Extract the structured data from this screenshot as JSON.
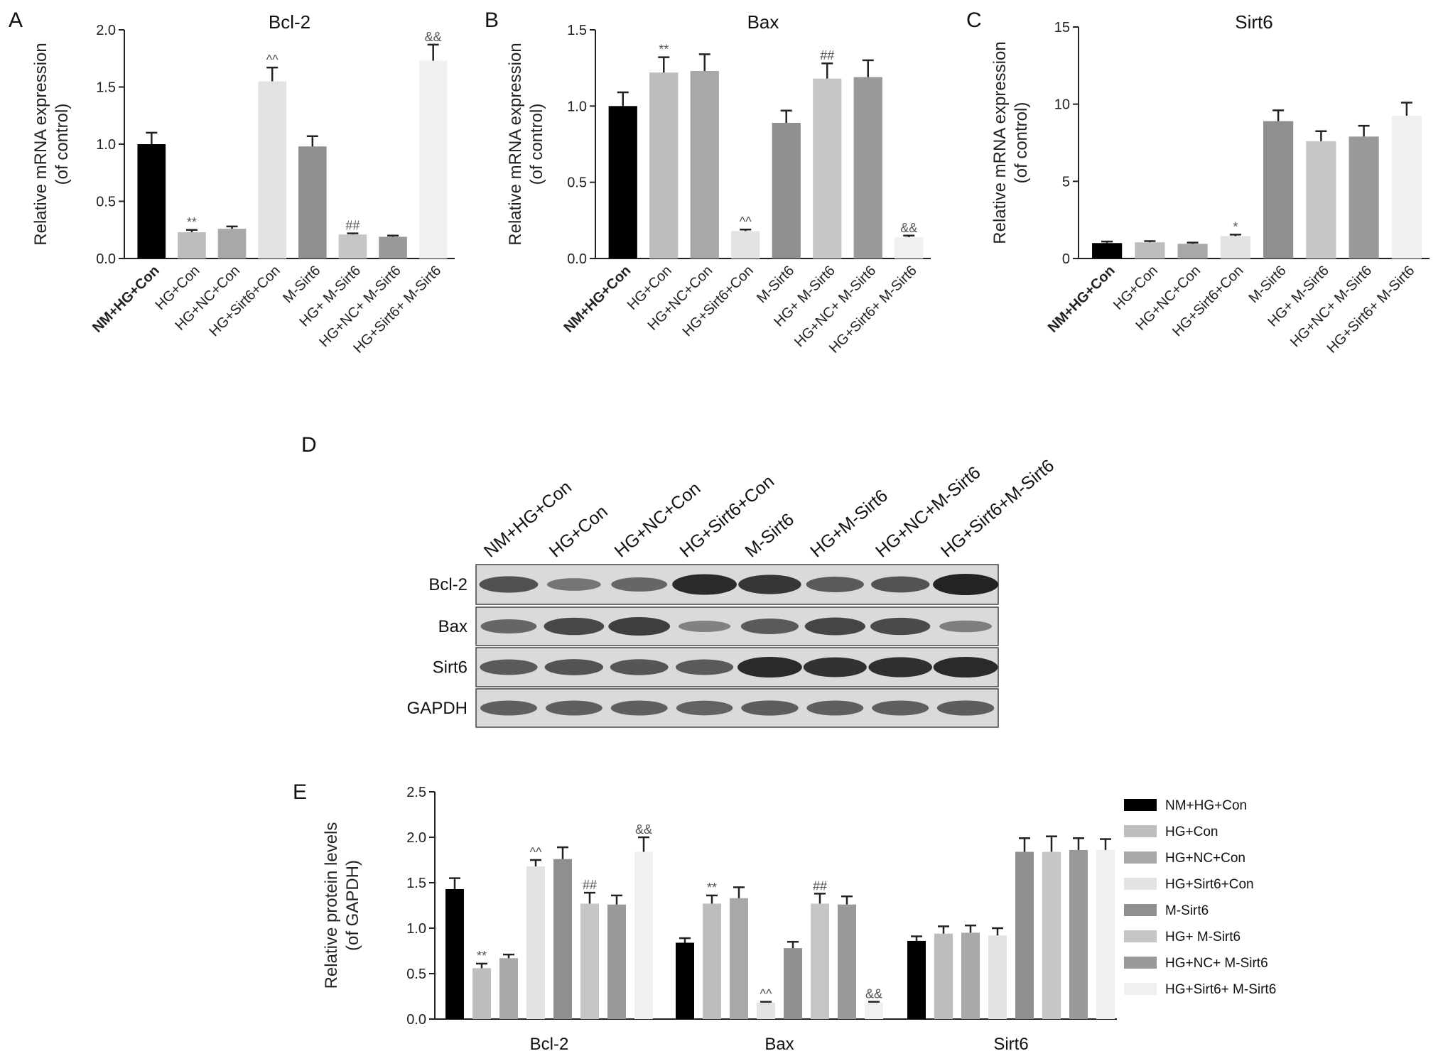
{
  "colors": [
    "#000000",
    "#bdbdbd",
    "#a8a8a8",
    "#e3e3e3",
    "#8f8f8f",
    "#c6c6c6",
    "#999999",
    "#f0f0f0"
  ],
  "chart_data": [
    {
      "panel": "A",
      "type": "bar",
      "title": "Bcl-2",
      "ylabel": "Relative mRNA expression (of control)",
      "ylabel_lines": [
        "Relative mRNA expression",
        "(of control)"
      ],
      "categories": [
        "NM+HG+Con",
        "HG+Con",
        "HG+NC+Con",
        "HG+Sirt6+Con",
        "M-Sirt6",
        "HG+ M-Sirt6",
        "HG+NC+ M-Sirt6",
        "HG+Sirt6+ M-Sirt6"
      ],
      "values": [
        1.0,
        0.23,
        0.26,
        1.55,
        0.98,
        0.21,
        0.19,
        1.73
      ],
      "errors": [
        0.1,
        0.02,
        0.02,
        0.12,
        0.09,
        0.01,
        0.01,
        0.14
      ],
      "annotations": [
        "",
        "**",
        "",
        "^^",
        "",
        "##",
        "",
        "&&"
      ],
      "ylim": [
        0,
        2.0
      ],
      "yticks": [
        "0.0",
        "0.5",
        "1.0",
        "1.5",
        "2.0"
      ]
    },
    {
      "panel": "B",
      "type": "bar",
      "title": "Bax",
      "ylabel": "Relative mRNA expression (of control)",
      "ylabel_lines": [
        "Relative mRNA expression",
        "(of control)"
      ],
      "categories": [
        "NM+HG+Con",
        "HG+Con",
        "HG+NC+Con",
        "HG+Sirt6+Con",
        "M-Sirt6",
        "HG+ M-Sirt6",
        "HG+NC+ M-Sirt6",
        "HG+Sirt6+ M-Sirt6"
      ],
      "values": [
        1.0,
        1.22,
        1.23,
        0.18,
        0.89,
        1.18,
        1.19,
        0.14
      ],
      "errors": [
        0.09,
        0.1,
        0.11,
        0.01,
        0.08,
        0.1,
        0.11,
        0.01
      ],
      "annotations": [
        "",
        "**",
        "",
        "^^",
        "",
        "##",
        "",
        "&&"
      ],
      "ylim": [
        0,
        1.5
      ],
      "yticks": [
        "0.0",
        "0.5",
        "1.0",
        "1.5"
      ]
    },
    {
      "panel": "C",
      "type": "bar",
      "title": "Sirt6",
      "ylabel": "Relative mRNA expression (of control)",
      "ylabel_lines": [
        "Relative mRNA expression",
        "(of control)"
      ],
      "categories": [
        "NM+HG+Con",
        "HG+Con",
        "HG+NC+Con",
        "HG+Sirt6+Con",
        "M-Sirt6",
        "HG+ M-Sirt6",
        "HG+NC+ M-Sirt6",
        "HG+Sirt6+ M-Sirt6"
      ],
      "values": [
        1.0,
        1.05,
        0.95,
        1.45,
        8.9,
        7.6,
        7.9,
        9.25
      ],
      "errors": [
        0.1,
        0.08,
        0.08,
        0.1,
        0.7,
        0.65,
        0.7,
        0.85
      ],
      "annotations": [
        "",
        "",
        "",
        "*",
        "",
        "",
        "",
        ""
      ],
      "ylim": [
        0,
        15
      ],
      "yticks": [
        "0",
        "5",
        "10",
        "15"
      ]
    },
    {
      "panel": "E",
      "type": "bar",
      "ylabel": "Relative protein levels (of GAPDH)",
      "ylabel_lines": [
        "Relative protein levels",
        "(of GAPDH)"
      ],
      "categories": [
        "Bcl-2",
        "Bax",
        "Sirt6"
      ],
      "series": [
        {
          "name": "NM+HG+Con",
          "values": [
            1.43,
            0.84,
            0.86
          ],
          "errors": [
            0.12,
            0.05,
            0.05
          ],
          "annotations": [
            "",
            "",
            ""
          ]
        },
        {
          "name": "HG+Con",
          "values": [
            0.56,
            1.27,
            0.94
          ],
          "errors": [
            0.05,
            0.09,
            0.08
          ],
          "annotations": [
            "**",
            "**",
            ""
          ]
        },
        {
          "name": "HG+NC+Con",
          "values": [
            0.67,
            1.33,
            0.95
          ],
          "errors": [
            0.04,
            0.12,
            0.08
          ],
          "annotations": [
            "",
            "",
            ""
          ]
        },
        {
          "name": "HG+Sirt6+Con",
          "values": [
            1.68,
            0.18,
            0.92
          ],
          "errors": [
            0.07,
            0.01,
            0.08
          ],
          "annotations": [
            "^^",
            "^^",
            ""
          ]
        },
        {
          "name": "M-Sirt6",
          "values": [
            1.76,
            0.78,
            1.84
          ],
          "errors": [
            0.13,
            0.07,
            0.15
          ],
          "annotations": [
            "",
            "",
            ""
          ]
        },
        {
          "name": "HG+ M-Sirt6",
          "values": [
            1.27,
            1.27,
            1.84
          ],
          "errors": [
            0.12,
            0.11,
            0.17
          ],
          "annotations": [
            "##",
            "##",
            ""
          ]
        },
        {
          "name": "HG+NC+ M-Sirt6",
          "values": [
            1.26,
            1.26,
            1.86
          ],
          "errors": [
            0.1,
            0.09,
            0.13
          ],
          "annotations": [
            "",
            "",
            ""
          ]
        },
        {
          "name": "HG+Sirt6+ M-Sirt6",
          "values": [
            1.84,
            0.18,
            1.86
          ],
          "errors": [
            0.16,
            0.01,
            0.12
          ],
          "annotations": [
            "&&",
            "&&",
            ""
          ]
        }
      ],
      "ylim": [
        0,
        2.5
      ],
      "yticks": [
        "0.0",
        "0.5",
        "1.0",
        "1.5",
        "2.0",
        "2.5"
      ],
      "legend": "right"
    }
  ],
  "western_blot": {
    "panel": "D",
    "lanes": [
      "NM+HG+Con",
      "HG+Con",
      "HG+NC+Con",
      "HG+Sirt6+Con",
      "M-Sirt6",
      "HG+M-Sirt6",
      "HG+NC+M-Sirt6",
      "HG+Sirt6+M-Sirt6"
    ],
    "rows": [
      {
        "label": "Bcl-2",
        "intensity": [
          0.62,
          0.32,
          0.45,
          0.95,
          0.85,
          0.55,
          0.6,
          1.0
        ]
      },
      {
        "label": "Bax",
        "intensity": [
          0.45,
          0.7,
          0.78,
          0.22,
          0.55,
          0.72,
          0.68,
          0.25
        ]
      },
      {
        "label": "Sirt6",
        "intensity": [
          0.55,
          0.6,
          0.58,
          0.55,
          0.95,
          0.88,
          0.9,
          0.95
        ]
      },
      {
        "label": "GAPDH",
        "intensity": [
          0.5,
          0.5,
          0.5,
          0.48,
          0.52,
          0.5,
          0.5,
          0.52
        ]
      }
    ]
  }
}
